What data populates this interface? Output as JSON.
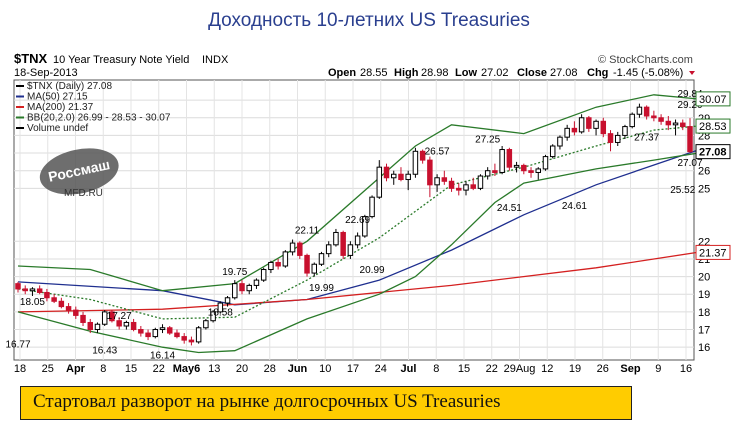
{
  "title": "Доходность 10-летних US Treasuries",
  "header": {
    "symbol": "$TNX",
    "name": "10 Year Treasury Note Yield",
    "exchange": "INDX",
    "date": "18-Sep-2013",
    "copyright": "© StockCharts.com",
    "open_label": "Open",
    "open": "28.55",
    "high_label": "High",
    "high": "28.98",
    "low_label": "Low",
    "low": "27.02",
    "close_label": "Close",
    "close": "27.08",
    "chg_label": "Chg",
    "chg": "-1.45 (-5.08%)"
  },
  "legend": [
    {
      "text": "$TNX (Daily) 27.08",
      "color": "#000000"
    },
    {
      "text": "MA(50) 27.15",
      "color": "#1f2f8f"
    },
    {
      "text": "MA(200) 21.37",
      "color": "#d42020"
    },
    {
      "text": "BB(20,2.0) 26.99 - 28.53 - 30.07",
      "color": "#2a7a2a"
    },
    {
      "text": "Volume undef",
      "color": "#000000"
    }
  ],
  "watermark": {
    "text": "Россмаш",
    "sub": "MFD.RU"
  },
  "caption": "Стартовал разворот на рынке долгосрочных US Treasuries",
  "colors": {
    "up": "#000000",
    "down": "#c8102e",
    "ma50": "#1f2f8f",
    "ma200": "#d42020",
    "bb": "#2a7a2a",
    "title": "#2a3f8f",
    "caption_bg": "#ffcc00"
  },
  "chart_data": {
    "type": "line",
    "y_axis": {
      "ticks": [
        16,
        17,
        18,
        19,
        20,
        21,
        22,
        25,
        26,
        27,
        28,
        29,
        30
      ],
      "ylim": [
        15.5,
        30.8
      ],
      "position": "right"
    },
    "x_axis": {
      "ticks": [
        "18",
        "25",
        "Apr",
        "8",
        "15",
        "22",
        "May6",
        "13",
        "20",
        "28",
        "Jun",
        "10",
        "17",
        "24",
        "Jul",
        "8",
        "15",
        "22",
        "29Aug",
        "12",
        "19",
        "26",
        "Sep",
        "9",
        "16"
      ]
    },
    "price_labels": [
      {
        "x": "Apr 1",
        "y": 16.77,
        "text": "16.77"
      },
      {
        "x": "Apr 5",
        "y": 18.05,
        "text": "18.05"
      },
      {
        "x": "Apr 19",
        "y": 16.43,
        "text": "16.43"
      },
      {
        "x": "Apr 23",
        "y": 17.27,
        "text": "17.27"
      },
      {
        "x": "May 1",
        "y": 16.14,
        "text": "16.14"
      },
      {
        "x": "May 13",
        "y": 18.58,
        "text": "18.58"
      },
      {
        "x": "May 15",
        "y": 19.75,
        "text": "19.75"
      },
      {
        "x": "May 30",
        "y": 22.11,
        "text": "22.11"
      },
      {
        "x": "Jun 3",
        "y": 19.99,
        "text": "19.99"
      },
      {
        "x": "Jun 10",
        "y": 22.69,
        "text": "22.69"
      },
      {
        "x": "Jun 12",
        "y": 20.99,
        "text": "20.99"
      },
      {
        "x": "Jun 25",
        "y": 26.57,
        "text": "26.57"
      },
      {
        "x": "Jul 5",
        "y": 27.25,
        "text": "27.25"
      },
      {
        "x": "Jul 10",
        "y": 24.51,
        "text": "24.51"
      },
      {
        "x": "Jul 22",
        "y": 24.61,
        "text": "24.61"
      },
      {
        "x": "Aug 5",
        "y": 27.37,
        "text": "27.37"
      },
      {
        "x": "Aug 13",
        "y": 25.52,
        "text": "25.52"
      },
      {
        "x": "Aug 21",
        "y": 29.2,
        "text": "29.20"
      },
      {
        "x": "Aug 29",
        "y": 27.07,
        "text": "27.07"
      },
      {
        "x": "Sep 5",
        "y": 29.84,
        "text": "29.84"
      }
    ],
    "axis_value_labels": [
      {
        "y": 30.07,
        "text": "30.07",
        "series": "BB upper"
      },
      {
        "y": 28.53,
        "text": "28.53",
        "series": "BB middle"
      },
      {
        "y": 27.08,
        "text": "27.08",
        "series": "Close"
      },
      {
        "y": 21.37,
        "text": "21.37",
        "series": "MA(200)"
      }
    ],
    "candles": [
      [
        19.6,
        19.7,
        19.1,
        19.3
      ],
      [
        19.3,
        19.5,
        19.0,
        19.2
      ],
      [
        19.2,
        19.4,
        18.9,
        19.3
      ],
      [
        19.3,
        19.5,
        19.0,
        19.1
      ],
      [
        19.1,
        19.3,
        18.6,
        18.8
      ],
      [
        18.8,
        19.0,
        18.5,
        18.6
      ],
      [
        18.6,
        18.8,
        18.2,
        18.3
      ],
      [
        18.3,
        18.5,
        17.9,
        18.1
      ],
      [
        18.1,
        18.3,
        17.6,
        17.8
      ],
      [
        17.8,
        18.0,
        17.2,
        17.4
      ],
      [
        17.4,
        17.6,
        16.8,
        17.0
      ],
      [
        17.0,
        17.4,
        16.8,
        17.3
      ],
      [
        17.3,
        18.1,
        17.2,
        18.0
      ],
      [
        18.0,
        18.1,
        17.4,
        17.5
      ],
      [
        17.5,
        17.7,
        17.0,
        17.2
      ],
      [
        17.2,
        17.5,
        17.0,
        17.4
      ],
      [
        17.4,
        17.6,
        16.9,
        17.0
      ],
      [
        17.0,
        17.2,
        16.6,
        16.8
      ],
      [
        16.8,
        17.0,
        16.4,
        16.6
      ],
      [
        16.6,
        17.1,
        16.5,
        17.0
      ],
      [
        17.0,
        17.3,
        16.8,
        17.1
      ],
      [
        17.1,
        17.2,
        16.7,
        16.8
      ],
      [
        16.8,
        17.0,
        16.5,
        16.6
      ],
      [
        16.6,
        16.8,
        16.2,
        16.4
      ],
      [
        16.4,
        16.6,
        16.1,
        16.3
      ],
      [
        16.3,
        17.2,
        16.2,
        17.1
      ],
      [
        17.1,
        17.6,
        17.0,
        17.5
      ],
      [
        17.5,
        18.1,
        17.4,
        18.0
      ],
      [
        18.0,
        18.6,
        17.9,
        18.5
      ],
      [
        18.5,
        18.9,
        18.3,
        18.8
      ],
      [
        18.8,
        19.8,
        18.7,
        19.6
      ],
      [
        19.6,
        19.8,
        19.0,
        19.2
      ],
      [
        19.2,
        19.6,
        19.0,
        19.5
      ],
      [
        19.5,
        19.9,
        19.3,
        19.8
      ],
      [
        19.8,
        20.5,
        19.7,
        20.4
      ],
      [
        20.4,
        20.9,
        20.2,
        20.8
      ],
      [
        20.8,
        21.0,
        20.4,
        20.6
      ],
      [
        20.6,
        21.5,
        20.5,
        21.4
      ],
      [
        21.4,
        22.1,
        21.2,
        21.9
      ],
      [
        21.9,
        22.0,
        21.0,
        21.2
      ],
      [
        21.2,
        21.3,
        20.0,
        20.2
      ],
      [
        20.2,
        20.8,
        20.0,
        20.7
      ],
      [
        20.7,
        21.4,
        20.6,
        21.3
      ],
      [
        21.3,
        22.0,
        21.1,
        21.8
      ],
      [
        21.8,
        22.7,
        21.7,
        22.5
      ],
      [
        22.5,
        22.6,
        21.0,
        21.2
      ],
      [
        21.2,
        22.0,
        21.0,
        21.8
      ],
      [
        21.8,
        22.5,
        21.6,
        22.3
      ],
      [
        22.3,
        23.5,
        22.2,
        23.4
      ],
      [
        23.4,
        24.6,
        23.3,
        24.5
      ],
      [
        24.5,
        26.6,
        24.4,
        26.2
      ],
      [
        26.2,
        26.4,
        25.4,
        25.6
      ],
      [
        25.6,
        26.0,
        25.2,
        25.8
      ],
      [
        25.8,
        26.2,
        25.4,
        25.5
      ],
      [
        25.5,
        26.0,
        24.9,
        25.8
      ],
      [
        25.8,
        27.3,
        25.6,
        27.1
      ],
      [
        27.1,
        27.2,
        26.4,
        26.6
      ],
      [
        26.6,
        26.8,
        24.5,
        25.2
      ],
      [
        25.2,
        25.8,
        24.8,
        25.6
      ],
      [
        25.6,
        26.0,
        25.2,
        25.4
      ],
      [
        25.4,
        25.6,
        24.8,
        25.0
      ],
      [
        25.0,
        25.3,
        24.6,
        24.9
      ],
      [
        24.9,
        25.4,
        24.6,
        25.2
      ],
      [
        25.2,
        25.6,
        24.9,
        25.0
      ],
      [
        25.0,
        25.8,
        24.9,
        25.7
      ],
      [
        25.7,
        26.2,
        25.5,
        26.0
      ],
      [
        26.0,
        26.4,
        25.7,
        25.9
      ],
      [
        25.9,
        27.4,
        25.8,
        27.2
      ],
      [
        27.2,
        27.3,
        26.0,
        26.2
      ],
      [
        26.2,
        26.5,
        25.9,
        26.3
      ],
      [
        26.3,
        26.4,
        25.8,
        26.0
      ],
      [
        26.0,
        26.2,
        25.6,
        25.9
      ],
      [
        25.9,
        26.2,
        25.5,
        26.1
      ],
      [
        26.1,
        26.9,
        26.0,
        26.8
      ],
      [
        26.8,
        27.5,
        26.7,
        27.4
      ],
      [
        27.4,
        28.0,
        27.2,
        27.9
      ],
      [
        27.9,
        28.6,
        27.7,
        28.4
      ],
      [
        28.4,
        28.8,
        28.0,
        28.2
      ],
      [
        28.2,
        29.2,
        28.1,
        29.0
      ],
      [
        29.0,
        29.1,
        28.2,
        28.4
      ],
      [
        28.4,
        28.9,
        28.0,
        28.8
      ],
      [
        28.8,
        29.0,
        27.9,
        28.1
      ],
      [
        28.1,
        28.3,
        27.1,
        27.6
      ],
      [
        27.6,
        28.2,
        27.4,
        28.0
      ],
      [
        28.0,
        28.6,
        27.8,
        28.5
      ],
      [
        28.5,
        29.3,
        28.4,
        29.2
      ],
      [
        29.2,
        29.8,
        29.0,
        29.6
      ],
      [
        29.6,
        29.7,
        28.9,
        29.1
      ],
      [
        29.1,
        29.4,
        28.8,
        29.0
      ],
      [
        29.0,
        29.2,
        28.6,
        28.8
      ],
      [
        28.8,
        29.1,
        28.3,
        28.6
      ],
      [
        28.6,
        28.9,
        28.0,
        28.7
      ],
      [
        28.7,
        28.9,
        28.3,
        28.5
      ],
      [
        28.5,
        28.98,
        27.02,
        27.08
      ]
    ],
    "series": [
      {
        "name": "MA(50)",
        "key": "ma50",
        "points": [
          [
            0,
            19.7
          ],
          [
            20,
            19.2
          ],
          [
            30,
            18.4
          ],
          [
            40,
            18.7
          ],
          [
            50,
            19.8
          ],
          [
            60,
            21.5
          ],
          [
            70,
            23.5
          ],
          [
            80,
            25.2
          ],
          [
            90,
            26.6
          ],
          [
            94,
            27.15
          ]
        ]
      },
      {
        "name": "MA(200)",
        "key": "ma200",
        "points": [
          [
            0,
            18.0
          ],
          [
            20,
            18.15
          ],
          [
            40,
            18.7
          ],
          [
            60,
            19.5
          ],
          [
            80,
            20.5
          ],
          [
            94,
            21.37
          ]
        ]
      },
      {
        "name": "BB upper",
        "key": "bb",
        "points": [
          [
            0,
            20.6
          ],
          [
            10,
            20.4
          ],
          [
            20,
            19.2
          ],
          [
            30,
            19.6
          ],
          [
            40,
            22.0
          ],
          [
            50,
            25.6
          ],
          [
            55,
            27.4
          ],
          [
            60,
            28.6
          ],
          [
            70,
            28.1
          ],
          [
            80,
            29.6
          ],
          [
            88,
            30.3
          ],
          [
            94,
            30.07
          ]
        ]
      },
      {
        "name": "BB lower",
        "key": "bb",
        "points": [
          [
            0,
            18.0
          ],
          [
            10,
            16.9
          ],
          [
            20,
            16.0
          ],
          [
            25,
            15.7
          ],
          [
            30,
            15.8
          ],
          [
            40,
            17.6
          ],
          [
            50,
            19.0
          ],
          [
            55,
            20.0
          ],
          [
            60,
            21.8
          ],
          [
            66,
            24.2
          ],
          [
            70,
            25.3
          ],
          [
            80,
            26.1
          ],
          [
            88,
            26.6
          ],
          [
            94,
            26.99
          ]
        ]
      },
      {
        "name": "BB middle",
        "key": "bbd",
        "points": [
          [
            0,
            19.3
          ],
          [
            10,
            18.7
          ],
          [
            20,
            17.6
          ],
          [
            30,
            17.7
          ],
          [
            40,
            19.8
          ],
          [
            50,
            22.2
          ],
          [
            60,
            25.2
          ],
          [
            70,
            26.2
          ],
          [
            80,
            27.4
          ],
          [
            88,
            28.3
          ],
          [
            94,
            28.53
          ]
        ]
      }
    ]
  }
}
